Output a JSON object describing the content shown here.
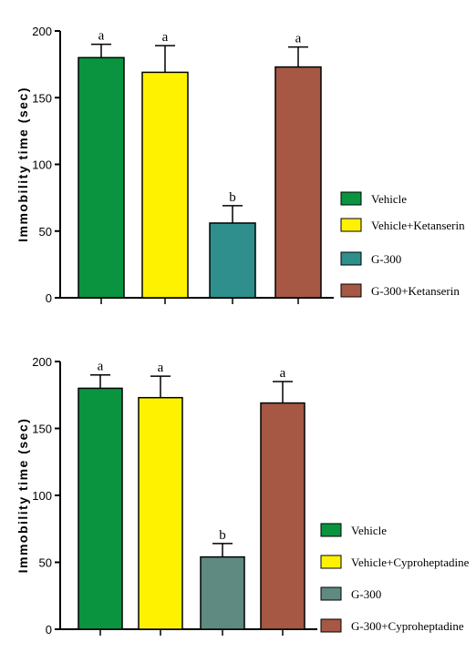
{
  "chart_data": [
    {
      "type": "bar",
      "ylabel": "Immobility time (sec)",
      "ylim": [
        0,
        200
      ],
      "yticks": [
        0,
        50,
        100,
        150,
        200
      ],
      "grid": false,
      "legend_position": "right",
      "categories": [
        "Vehicle",
        "Vehicle+Ketanserin",
        "G-300",
        "G-300+Ketanserin"
      ],
      "values": [
        180,
        169,
        56,
        173
      ],
      "errors": [
        10,
        20,
        13,
        15
      ],
      "significance": [
        "a",
        "a",
        "b",
        "a"
      ],
      "colors": [
        "#0a9440",
        "#fff200",
        "#2e8f8c",
        "#a65845"
      ]
    },
    {
      "type": "bar",
      "ylabel": "Immobility time (sec)",
      "ylim": [
        0,
        200
      ],
      "yticks": [
        0,
        50,
        100,
        150,
        200
      ],
      "grid": false,
      "legend_position": "right",
      "categories": [
        "Vehicle",
        "Vehicle+Cyproheptadine",
        "G-300",
        "G-300+Cyproheptadine"
      ],
      "values": [
        180,
        173,
        54,
        169
      ],
      "errors": [
        10,
        16,
        10,
        16
      ],
      "significance": [
        "a",
        "a",
        "b",
        "a"
      ],
      "colors": [
        "#0a9440",
        "#fff200",
        "#5e8a82",
        "#a65845"
      ]
    }
  ]
}
